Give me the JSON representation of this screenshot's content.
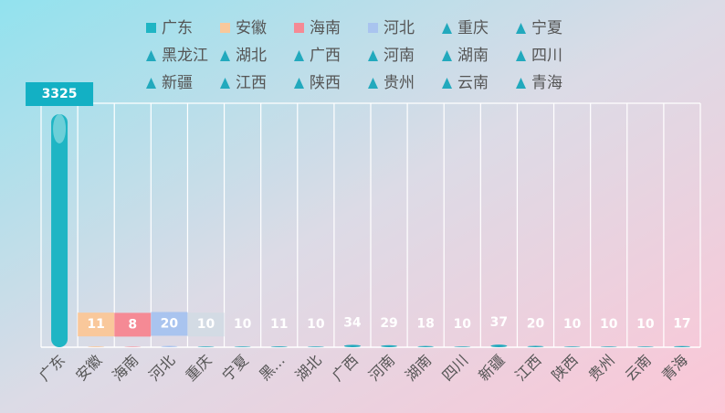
{
  "chart_data": {
    "type": "bar",
    "categories": [
      "广东",
      "安徽",
      "海南",
      "河北",
      "重庆",
      "宁夏",
      "黑龙江",
      "湖北",
      "广西",
      "河南",
      "湖南",
      "四川",
      "新疆",
      "江西",
      "陕西",
      "贵州",
      "云南",
      "青海"
    ],
    "tick_labels": [
      "广东",
      "安徽",
      "海南",
      "河北",
      "重庆",
      "宁夏",
      "黑...",
      "湖北",
      "广西",
      "河南",
      "湖南",
      "四川",
      "新疆",
      "江西",
      "陕西",
      "贵州",
      "云南",
      "青海"
    ],
    "values": [
      3325,
      11,
      8,
      20,
      10,
      10,
      11,
      10,
      34,
      29,
      18,
      10,
      37,
      20,
      10,
      10,
      10,
      17
    ],
    "colors": [
      "#1fb5c4",
      "#f9c89b",
      "#f58a95",
      "#a9c4ef",
      "#22a9bd",
      "#22a9bd",
      "#22a9bd",
      "#22a9bd",
      "#22a9bd",
      "#22a9bd",
      "#22a9bd",
      "#22a9bd",
      "#22a9bd",
      "#22a9bd",
      "#22a9bd",
      "#22a9bd",
      "#22a9bd",
      "#22a9bd"
    ],
    "value_label_bg": [
      "#13b0c4",
      "#f9c89b",
      "#f58a95",
      "#a9c4ef",
      "#d3dbe4",
      null,
      null,
      null,
      null,
      null,
      null,
      null,
      null,
      null,
      null,
      null,
      null,
      null
    ],
    "grid": true
  }
}
